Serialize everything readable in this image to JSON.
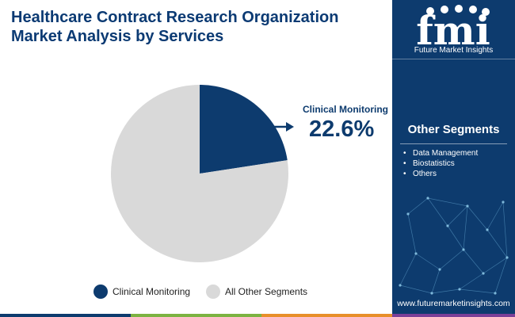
{
  "header": {
    "title": "Healthcare Contract Research Organization Market Analysis by Services"
  },
  "brand": {
    "logo_text": "fmi",
    "tagline": "Future Market Insights",
    "website": "www.futuremarketinsights.com",
    "icons": [
      "stethoscope-icon",
      "drop-icon",
      "cloud-icon",
      "rocket-icon",
      "person-icon"
    ]
  },
  "sidebar": {
    "heading": "Other Segments",
    "items": [
      "Data Management",
      "Biostatistics",
      "Others"
    ]
  },
  "callout": {
    "label": "Clinical Monitoring",
    "value": "22.6%"
  },
  "colors": {
    "primary": "#0d3b6e",
    "secondary": "#d9d9d9",
    "footer": [
      "#0d3b6e",
      "#7cb342",
      "#e88f2a",
      "#7b3f98"
    ]
  },
  "chart_data": {
    "type": "pie",
    "series": [
      {
        "name": "Clinical Monitoring",
        "value": 22.6,
        "color": "#0d3b6e"
      },
      {
        "name": "All Other Segments",
        "value": 77.4,
        "color": "#d9d9d9"
      }
    ],
    "legend": "bottom"
  }
}
